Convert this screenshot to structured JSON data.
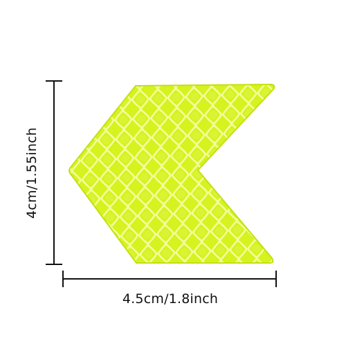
{
  "product": {
    "colors": {
      "fill": "#d6f21f",
      "grid": "#f2ff9c",
      "edge": "#c3e010"
    }
  },
  "dimensions": {
    "height_label": "4cm/1.55inch",
    "width_label": "4.5cm/1.8inch"
  }
}
